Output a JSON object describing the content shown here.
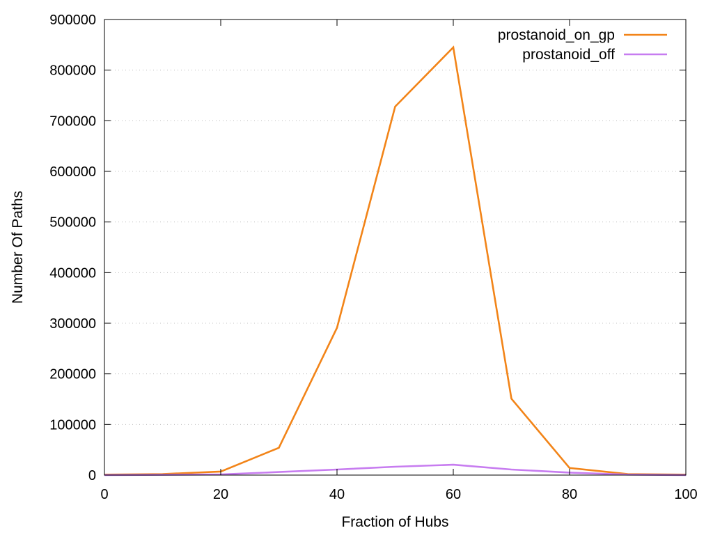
{
  "chart_data": {
    "type": "line",
    "title": "",
    "xlabel": "Fraction of Hubs",
    "ylabel": "Number Of Paths",
    "xlim": [
      0,
      100
    ],
    "ylim": [
      0,
      900000
    ],
    "x_ticks": [
      0,
      20,
      40,
      60,
      80,
      100
    ],
    "y_ticks": [
      0,
      100000,
      200000,
      300000,
      400000,
      500000,
      600000,
      700000,
      800000,
      900000
    ],
    "grid": "horizontal-dotted",
    "legend_position": "top-right",
    "x": [
      0,
      10,
      20,
      30,
      40,
      50,
      60,
      70,
      80,
      90,
      100
    ],
    "series": [
      {
        "name": "prostanoid_on_gp",
        "color": "#f28418",
        "values": [
          1000,
          2000,
          7000,
          54000,
          291000,
          728000,
          845000,
          151000,
          14000,
          2000,
          1000
        ]
      },
      {
        "name": "prostanoid_off",
        "color": "#c77cf0",
        "values": [
          200,
          500,
          1200,
          6000,
          11000,
          16500,
          20500,
          11000,
          5000,
          1000,
          200
        ]
      }
    ]
  }
}
